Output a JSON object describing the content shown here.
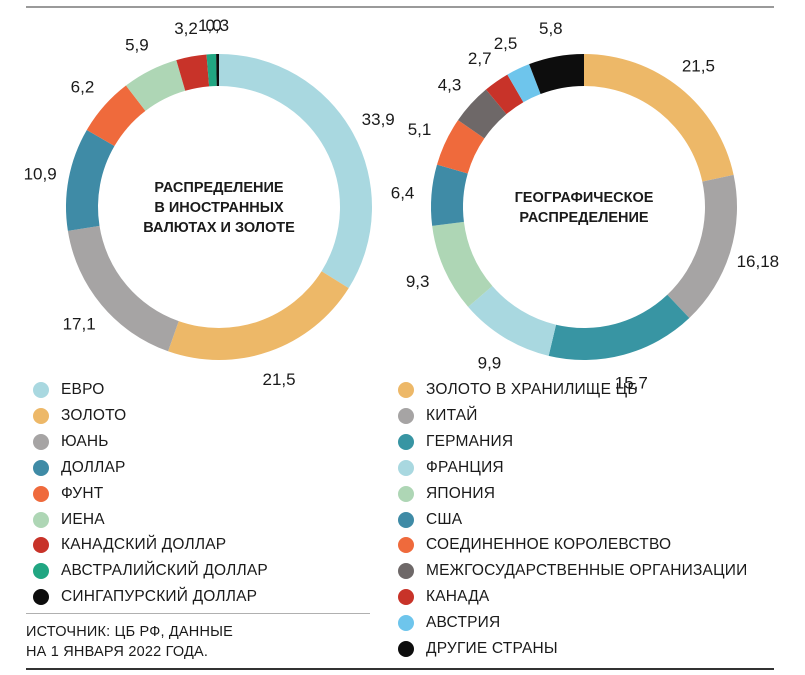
{
  "colors": {
    "light_blue": "#a9d8e0",
    "gold": "#edb868",
    "gray": "#a6a4a4",
    "teal": "#3f8ba6",
    "orange": "#ef6a3c",
    "light_green": "#aed6b5",
    "dark_red": "#c83329",
    "green": "#21a682",
    "black": "#0d0d0d",
    "dark_teal": "#3895a3",
    "dark_gray": "#6e6868",
    "sky_blue": "#6ec5ec"
  },
  "chart_data": [
    {
      "type": "pie",
      "donut": true,
      "center_label": [
        "РАСПРЕДЕЛЕНИЕ",
        "В ИНОСТРАННЫХ",
        "ВАЛЮТАХ И ЗОЛОТЕ"
      ],
      "slices": [
        {
          "label": "ЕВРО",
          "value": 33.9,
          "display": "33,9",
          "color": "#a9d8e0"
        },
        {
          "label": "ЗОЛОТО",
          "value": 21.5,
          "display": "21,5",
          "color": "#edb868"
        },
        {
          "label": "ЮАНЬ",
          "value": 17.1,
          "display": "17,1",
          "color": "#a6a4a4"
        },
        {
          "label": "ДОЛЛАР",
          "value": 10.9,
          "display": "10,9",
          "color": "#3f8ba6"
        },
        {
          "label": "ФУНТ",
          "value": 6.2,
          "display": "6,2",
          "color": "#ef6a3c"
        },
        {
          "label": "ИЕНА",
          "value": 5.9,
          "display": "5,9",
          "color": "#aed6b5"
        },
        {
          "label": "КАНАДСКИЙ ДОЛЛАР",
          "value": 3.2,
          "display": "3,2",
          "color": "#c83329"
        },
        {
          "label": "АВСТРАЛИЙСКИЙ ДОЛЛАР",
          "value": 1.0,
          "display": "1,0",
          "color": "#21a682"
        },
        {
          "label": "СИНГАПУРСКИЙ ДОЛЛАР",
          "value": 0.3,
          "display": "0,3",
          "color": "#0d0d0d"
        }
      ]
    },
    {
      "type": "pie",
      "donut": true,
      "center_label": [
        "ГЕОГРАФИЧЕСКОЕ",
        "РАСПРЕДЕЛЕНИЕ"
      ],
      "slices": [
        {
          "label": "ЗОЛОТО В ХРАНИЛИЩЕ ЦБ",
          "value": 21.5,
          "display": "21,5",
          "color": "#edb868"
        },
        {
          "label": "КИТАЙ",
          "value": 16.18,
          "display": "16,18",
          "color": "#a6a4a4"
        },
        {
          "label": "ГЕРМАНИЯ",
          "value": 15.7,
          "display": "15,7",
          "color": "#3895a3"
        },
        {
          "label": "ФРАНЦИЯ",
          "value": 9.9,
          "display": "9,9",
          "color": "#a9d8e0"
        },
        {
          "label": "ЯПОНИЯ",
          "value": 9.3,
          "display": "9,3",
          "color": "#aed6b5"
        },
        {
          "label": "США",
          "value": 6.4,
          "display": "6,4",
          "color": "#3f8ba6"
        },
        {
          "label": "СОЕДИНЕННОЕ КОРОЛЕВСТВО",
          "value": 5.1,
          "display": "5,1",
          "color": "#ef6a3c"
        },
        {
          "label": "МЕЖГОСУДАРСТВЕННЫЕ ОРГАНИЗАЦИИ",
          "value": 4.3,
          "display": "4,3",
          "color": "#6e6868"
        },
        {
          "label": "КАНАДА",
          "value": 2.7,
          "display": "2,7",
          "color": "#c83329"
        },
        {
          "label": "АВСТРИЯ",
          "value": 2.5,
          "display": "2,5",
          "color": "#6ec5ec"
        },
        {
          "label": "ДРУГИЕ СТРАНЫ",
          "value": 5.8,
          "display": "5,8",
          "color": "#0d0d0d"
        }
      ]
    }
  ],
  "source": {
    "line1": "ИСТОЧНИК: ЦБ РФ, ДАННЫЕ",
    "line2": "НА 1 ЯНВАРЯ 2022 ГОДА."
  }
}
